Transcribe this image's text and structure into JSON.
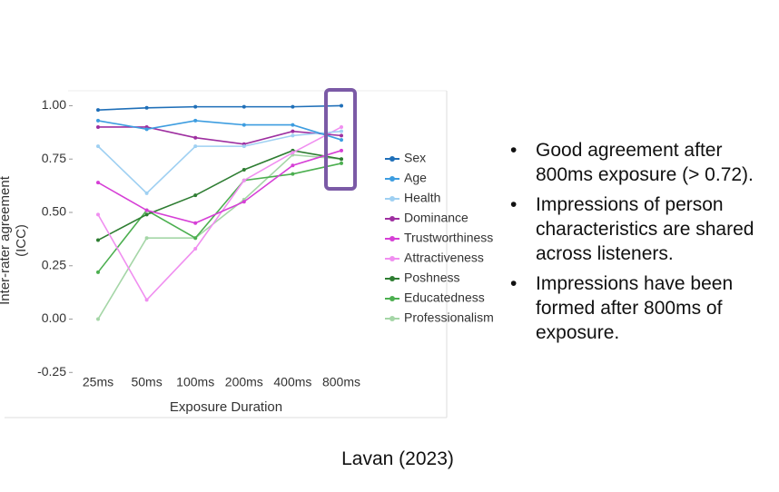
{
  "chart_data": {
    "type": "line",
    "ylabel_lines": [
      "Inter-rater agreement",
      "(ICC)"
    ],
    "xlabel": "Exposure Duration",
    "categories": [
      "25ms",
      "50ms",
      "100ms",
      "200ms",
      "400ms",
      "800ms"
    ],
    "ylim": [
      -0.27,
      1.07
    ],
    "yticks": [
      {
        "value": -0.25,
        "label": "-0.25"
      },
      {
        "value": 0,
        "label": "0.00"
      },
      {
        "value": 0.25,
        "label": "0.25"
      },
      {
        "value": 0.5,
        "label": "0.50"
      },
      {
        "value": 0.75,
        "label": "0.75"
      },
      {
        "value": 1,
        "label": "1.00"
      }
    ],
    "series": [
      {
        "name": "Sex",
        "color": "#1f6fb8",
        "values": [
          0.98,
          0.99,
          0.995,
          0.995,
          0.995,
          1.0
        ]
      },
      {
        "name": "Age",
        "color": "#3d9de0",
        "values": [
          0.93,
          0.89,
          0.93,
          0.91,
          0.91,
          0.84
        ]
      },
      {
        "name": "Health",
        "color": "#9fd0f2",
        "values": [
          0.81,
          0.59,
          0.81,
          0.81,
          0.86,
          0.88
        ]
      },
      {
        "name": "Dominance",
        "color": "#9e2fa0",
        "values": [
          0.9,
          0.9,
          0.85,
          0.82,
          0.88,
          0.86
        ]
      },
      {
        "name": "Trustworthiness",
        "color": "#d63fd6",
        "values": [
          0.64,
          0.51,
          0.45,
          0.55,
          0.72,
          0.79
        ]
      },
      {
        "name": "Attractiveness",
        "color": "#f08ff0",
        "values": [
          0.49,
          0.09,
          0.33,
          0.65,
          0.78,
          0.9
        ]
      },
      {
        "name": "Poshness",
        "color": "#2e7d32",
        "values": [
          0.37,
          0.49,
          0.58,
          0.7,
          0.79,
          0.75
        ]
      },
      {
        "name": "Educatedness",
        "color": "#4caf50",
        "values": [
          0.22,
          0.51,
          0.38,
          0.65,
          0.68,
          0.73
        ]
      },
      {
        "name": "Professionalism",
        "color": "#a5d6a7",
        "values": [
          0.0,
          0.38,
          0.38,
          0.56,
          0.77,
          0.75
        ]
      }
    ]
  },
  "bullets": [
    [
      "Good agreement after",
      "800ms exposure (> 0.72)."
    ],
    [
      "Impressions of person",
      "characteristics are shared",
      "across listeners."
    ],
    [
      "Impressions have been",
      "formed after 800ms of",
      "exposure."
    ]
  ],
  "citation": "Lavan (2023)"
}
